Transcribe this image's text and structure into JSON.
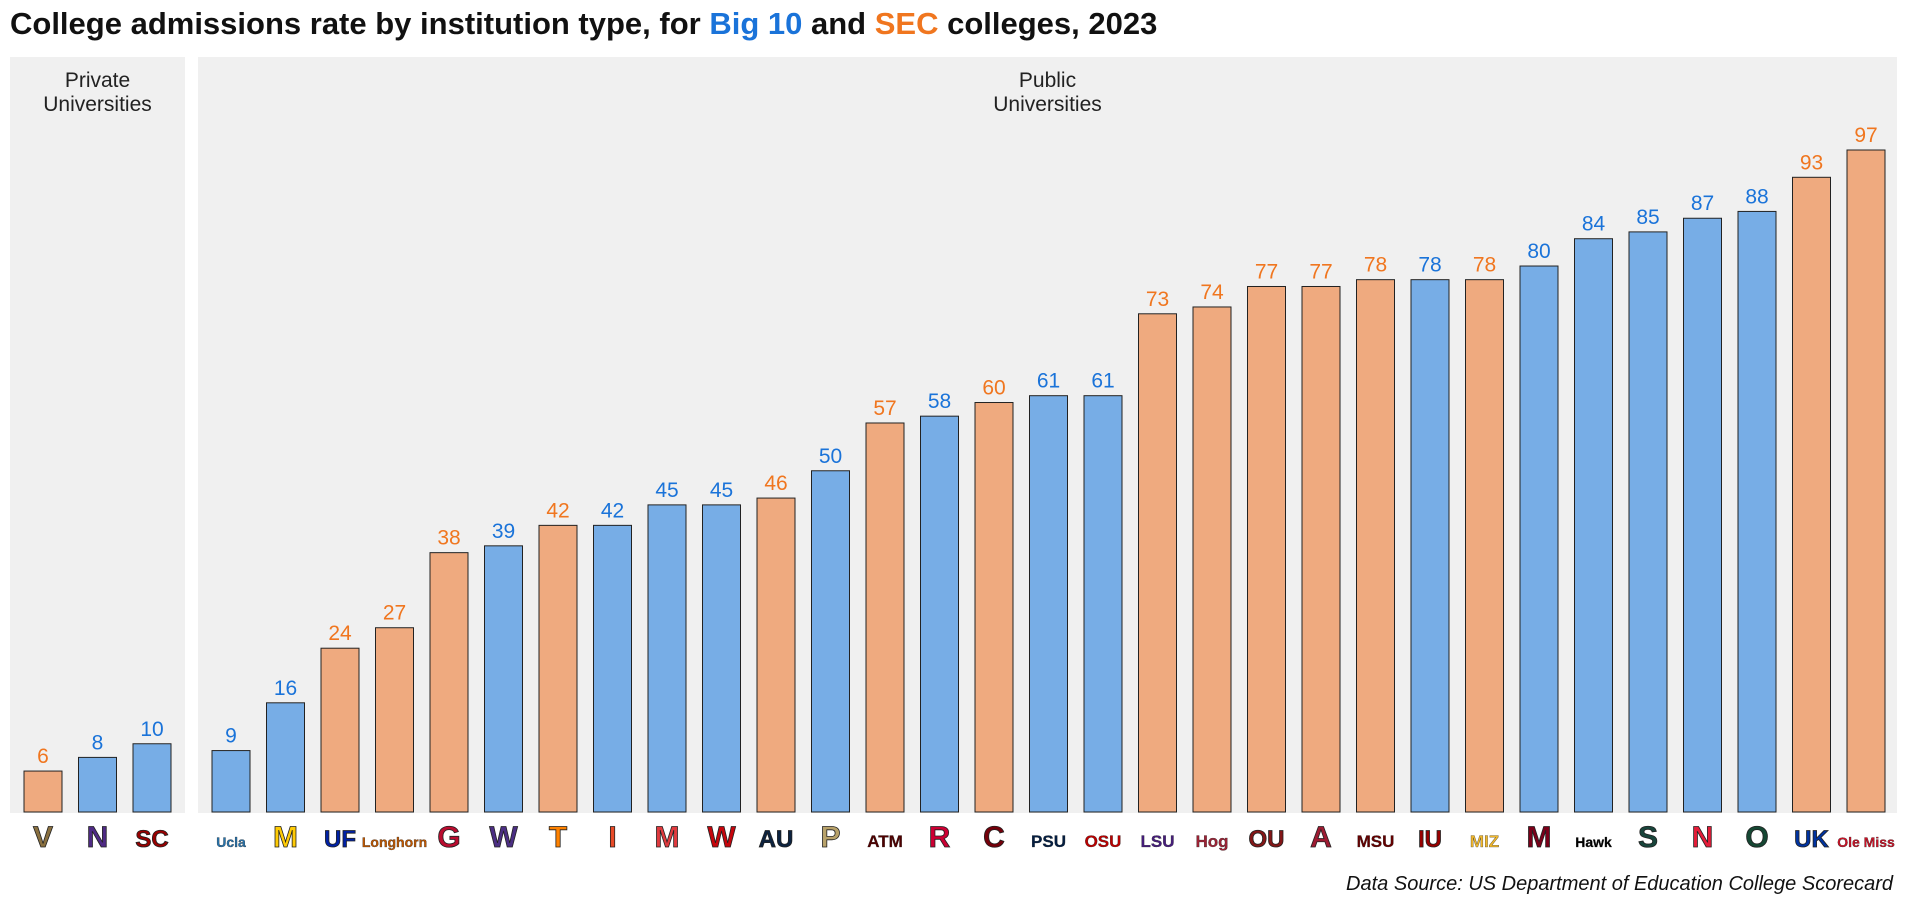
{
  "title": {
    "prefix": "College admissions rate by institution type, for ",
    "big10": "Big 10",
    "mid": " and ",
    "sec": "SEC",
    "suffix": " colleges, 2023"
  },
  "source": "Data Source: US Department of Education College Scorecard",
  "colors": {
    "big10_bar": "#77ade6",
    "sec_bar": "#efaa7f",
    "big10_text": "#1a73d9",
    "sec_text": "#f0761f",
    "panel_bg": "#f0f0f0"
  },
  "chart_data": {
    "type": "bar",
    "ylim": [
      0,
      100
    ],
    "facets": [
      {
        "label": "Private\nUniversities",
        "bars": [
          {
            "school": "Vanderbilt",
            "conference": "SEC",
            "value": 6,
            "logo": "V",
            "logo_color": "#8a7040"
          },
          {
            "school": "Northwestern",
            "conference": "Big 10",
            "value": 8,
            "logo": "N",
            "logo_color": "#4e2a84"
          },
          {
            "school": "USC",
            "conference": "Big 10",
            "value": 10,
            "logo": "SC",
            "logo_color": "#990000"
          }
        ]
      },
      {
        "label": "Public\nUniversities",
        "bars": [
          {
            "school": "UCLA",
            "conference": "Big 10",
            "value": 9,
            "logo": "Ucla",
            "logo_color": "#2774ae"
          },
          {
            "school": "Michigan",
            "conference": "Big 10",
            "value": 16,
            "logo": "M",
            "logo_color": "#ffcb05"
          },
          {
            "school": "Florida",
            "conference": "SEC",
            "value": 24,
            "logo": "UF",
            "logo_color": "#0021a5"
          },
          {
            "school": "Texas",
            "conference": "SEC",
            "value": 27,
            "logo": "Longhorn",
            "logo_color": "#bf5700"
          },
          {
            "school": "Georgia",
            "conference": "SEC",
            "value": 38,
            "logo": "G",
            "logo_color": "#ba0c2f"
          },
          {
            "school": "Washington",
            "conference": "Big 10",
            "value": 39,
            "logo": "W",
            "logo_color": "#4b2e83"
          },
          {
            "school": "Tennessee",
            "conference": "SEC",
            "value": 42,
            "logo": "T",
            "logo_color": "#ff8200"
          },
          {
            "school": "Illinois",
            "conference": "Big 10",
            "value": 42,
            "logo": "I",
            "logo_color": "#e84a27"
          },
          {
            "school": "Maryland",
            "conference": "Big 10",
            "value": 45,
            "logo": "M",
            "logo_color": "#e03a3e"
          },
          {
            "school": "Wisconsin",
            "conference": "Big 10",
            "value": 45,
            "logo": "W",
            "logo_color": "#c5050c"
          },
          {
            "school": "Auburn",
            "conference": "SEC",
            "value": 46,
            "logo": "AU",
            "logo_color": "#0c2340"
          },
          {
            "school": "Purdue",
            "conference": "Big 10",
            "value": 50,
            "logo": "P",
            "logo_color": "#b8a26a"
          },
          {
            "school": "Texas A&M",
            "conference": "SEC",
            "value": 57,
            "logo": "ATM",
            "logo_color": "#500000"
          },
          {
            "school": "Rutgers",
            "conference": "Big 10",
            "value": 58,
            "logo": "R",
            "logo_color": "#cc0033"
          },
          {
            "school": "South Carolina",
            "conference": "SEC",
            "value": 60,
            "logo": "C",
            "logo_color": "#73000a"
          },
          {
            "school": "Penn State",
            "conference": "Big 10",
            "value": 61,
            "logo": "PSU",
            "logo_color": "#041e42"
          },
          {
            "school": "Ohio State",
            "conference": "Big 10",
            "value": 61,
            "logo": "OSU",
            "logo_color": "#bb0000"
          },
          {
            "school": "LSU",
            "conference": "SEC",
            "value": 73,
            "logo": "LSU",
            "logo_color": "#461d7c"
          },
          {
            "school": "Arkansas",
            "conference": "SEC",
            "value": 74,
            "logo": "Hog",
            "logo_color": "#9d2235"
          },
          {
            "school": "Oklahoma",
            "conference": "SEC",
            "value": 77,
            "logo": "OU",
            "logo_color": "#841617"
          },
          {
            "school": "Alabama",
            "conference": "SEC",
            "value": 77,
            "logo": "A",
            "logo_color": "#9e1b32"
          },
          {
            "school": "Mississippi State",
            "conference": "SEC",
            "value": 78,
            "logo": "MSU",
            "logo_color": "#660000"
          },
          {
            "school": "Indiana",
            "conference": "Big 10",
            "value": 78,
            "logo": "IU",
            "logo_color": "#990000"
          },
          {
            "school": "Missouri",
            "conference": "SEC",
            "value": 78,
            "logo": "MIZ",
            "logo_color": "#f1b82d"
          },
          {
            "school": "Minnesota",
            "conference": "Big 10",
            "value": 80,
            "logo": "M",
            "logo_color": "#7a0019"
          },
          {
            "school": "Iowa",
            "conference": "Big 10",
            "value": 84,
            "logo": "Hawk",
            "logo_color": "#000000"
          },
          {
            "school": "Michigan State",
            "conference": "Big 10",
            "value": 85,
            "logo": "S",
            "logo_color": "#18453b"
          },
          {
            "school": "Nebraska",
            "conference": "Big 10",
            "value": 87,
            "logo": "N",
            "logo_color": "#e41c38"
          },
          {
            "school": "Oregon",
            "conference": "Big 10",
            "value": 88,
            "logo": "O",
            "logo_color": "#154733"
          },
          {
            "school": "Kentucky",
            "conference": "SEC",
            "value": 93,
            "logo": "UK",
            "logo_color": "#0033a0"
          },
          {
            "school": "Ole Miss",
            "conference": "SEC",
            "value": 97,
            "logo": "Ole Miss",
            "logo_color": "#ce1126"
          }
        ]
      }
    ]
  }
}
